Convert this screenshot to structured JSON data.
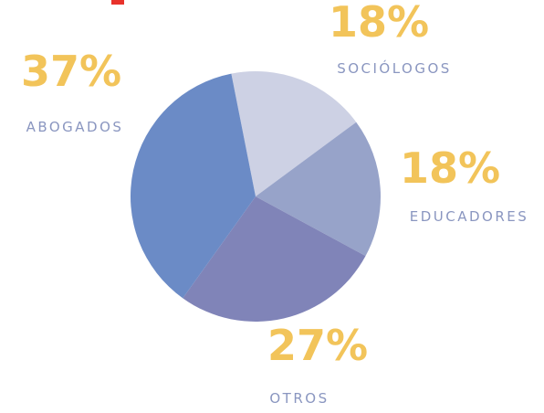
{
  "chart_data": {
    "type": "pie",
    "categories": [
      "SOCIÓLOGOS",
      "EDUCADORES",
      "OTROS",
      "ABOGADOS"
    ],
    "values": [
      18,
      18,
      27,
      37
    ],
    "value_labels": [
      "18%",
      "18%",
      "27%",
      "37%"
    ],
    "colors": [
      "#cdd1e4",
      "#97a3c9",
      "#8084b8",
      "#6b8bc6"
    ]
  }
}
